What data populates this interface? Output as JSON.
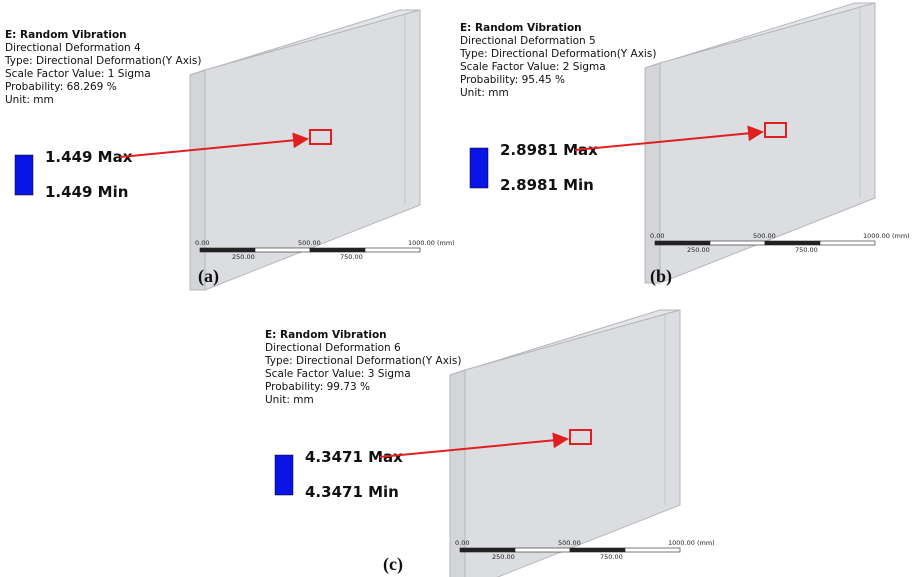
{
  "panels": [
    {
      "title": "E: Random Vibration",
      "lines": [
        "Directional Deformation 4",
        "Type: Directional Deformation(Y Axis)",
        "Scale Factor Value: 1 Sigma",
        "Probability: 68.269 %",
        "Unit: mm"
      ],
      "max": "1.449 Max",
      "min": "1.449 Min",
      "scale_top": [
        "0.00",
        "500.00",
        "1000.00 (mm)"
      ],
      "scale_bottom": [
        "250.00",
        "750.00"
      ],
      "caption": "(a)"
    },
    {
      "title": "E: Random Vibration",
      "lines": [
        "Directional Deformation 5",
        "Type: Directional Deformation(Y Axis)",
        "Scale Factor Value: 2 Sigma",
        "Probability: 95.45 %",
        "Unit: mm"
      ],
      "max": "2.8981 Max",
      "min": "2.8981 Min",
      "scale_top": [
        "0.00",
        "500.00",
        "1000.00 (mm)"
      ],
      "scale_bottom": [
        "250.00",
        "750.00"
      ],
      "caption": "(b)"
    },
    {
      "title": "E: Random Vibration",
      "lines": [
        "Directional Deformation 6",
        "Type: Directional Deformation(Y Axis)",
        "Scale Factor Value: 3 Sigma",
        "Probability: 99.73 %",
        "Unit: mm"
      ],
      "max": "4.3471 Max",
      "min": "4.3471 Min",
      "scale_top": [
        "0.00",
        "500.00",
        "1000.00 (mm)"
      ],
      "scale_bottom": [
        "250.00",
        "750.00"
      ],
      "caption": "(c)"
    }
  ]
}
